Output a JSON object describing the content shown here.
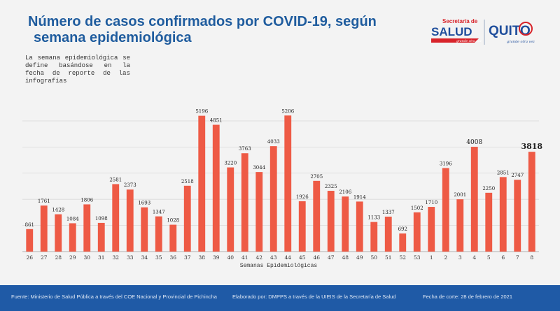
{
  "header": {
    "title_line1": "Número de casos confirmados por COVID-19, según",
    "title_line2": "semana epidemiológica",
    "note": "La semana epidemiológica se define basándose en la fecha de reporte de las infografías"
  },
  "logos": {
    "salud_top": "Secretaría de",
    "salud_main": "SALUD",
    "salud_tagline": "grande otra vez",
    "quito_main": "QUITO",
    "quito_tagline": "grande otra vez"
  },
  "chart_data": {
    "type": "bar",
    "categories": [
      "26",
      "27",
      "28",
      "29",
      "30",
      "31",
      "32",
      "33",
      "34",
      "35",
      "36",
      "37",
      "38",
      "39",
      "40",
      "41",
      "42",
      "43",
      "44",
      "45",
      "46",
      "47",
      "48",
      "49",
      "50",
      "51",
      "52",
      "53",
      "1",
      "2",
      "3",
      "4",
      "5",
      "6",
      "7",
      "8"
    ],
    "values": [
      861,
      1761,
      1428,
      1084,
      1806,
      1098,
      2581,
      2373,
      1693,
      1347,
      1028,
      2518,
      5196,
      4851,
      3220,
      3763,
      3044,
      4033,
      5206,
      1926,
      2705,
      2325,
      2106,
      1914,
      1133,
      1337,
      692,
      1502,
      1710,
      3196,
      2001,
      4008,
      2250,
      2851,
      2747,
      3818
    ],
    "xlabel": "Semanas Epidemiológicas",
    "ylabel": "",
    "ylim": [
      0,
      5400
    ],
    "grid": true,
    "bar_color": "#ee5a45",
    "highlight_last": true
  },
  "footer": {
    "source": "Fuente: Ministerio de Salud Pública a través del COE Nacional y Provincial de Pichincha",
    "prepared": "Elaborado por: DMPPS a través de la UIEIS de la Secretaría de Salud",
    "cutoff": "Fecha de corte: 28 de febrero de 2021"
  },
  "colors": {
    "title": "#1f5c9e",
    "footer_bg": "#1f5aa6",
    "salud_red": "#d8232a",
    "salud_blue": "#1f4e9c"
  }
}
